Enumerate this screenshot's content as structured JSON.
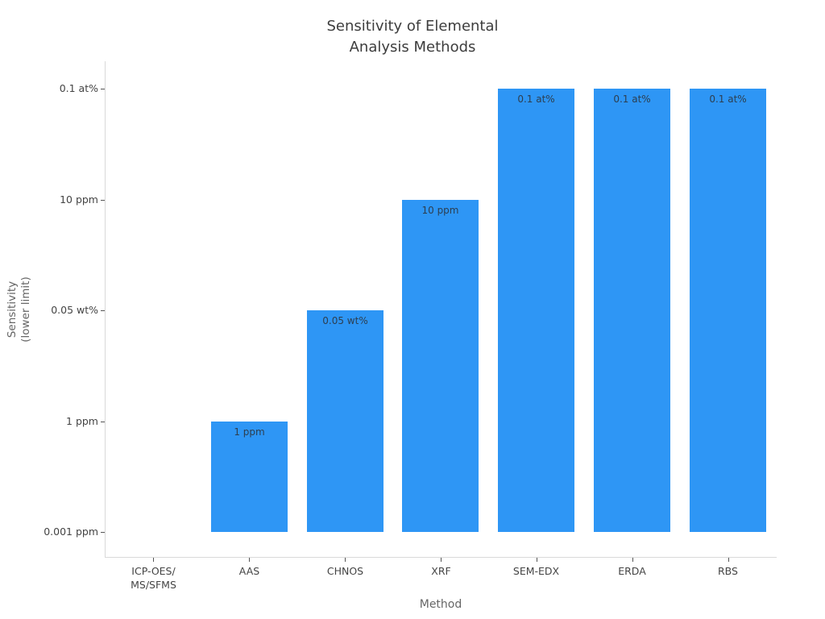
{
  "chart_data": {
    "type": "bar",
    "title_lines": [
      "Sensitivity of Elemental",
      "Analysis Methods"
    ],
    "title": "Sensitivity of Elemental Analysis Methods",
    "xlabel": "Method",
    "ylabel_lines": [
      "Sensitivity",
      "(lower limit)"
    ],
    "ylabel": "Sensitivity (lower limit)",
    "categories": [
      "ICP-OES/\nMS/SFMS",
      "AAS",
      "CHNOS",
      "XRF",
      "SEM-EDX",
      "ERDA",
      "RBS"
    ],
    "sensitivities": [
      "0.001 ppm",
      "1 ppm",
      "0.05 wt%",
      "10 ppm",
      "0.1 at%",
      "0.1 at%",
      "0.1 at%"
    ],
    "values": [
      0,
      1,
      2,
      3,
      4,
      4,
      4
    ],
    "bar_labels": [
      "",
      "1 ppm",
      "0.05 wt%",
      "10 ppm",
      "0.1 at%",
      "0.1 at%",
      "0.1 at%"
    ],
    "ytick_labels": [
      "0.001 ppm",
      "1 ppm",
      "0.05 wt%",
      "10 ppm",
      "0.1 at%"
    ],
    "ytick_values": [
      0,
      1,
      2,
      3,
      4
    ],
    "ylim": [
      -0.225,
      4.25
    ],
    "grid": false,
    "legend": "none",
    "colors": {
      "bar": "#2E96F5",
      "axis_line": "#D9D9D9",
      "tick": "#555555",
      "tick_label": "#444444",
      "title": "#3d3d3d",
      "axis_title": "#666666",
      "bar_label": "#2d3e50"
    }
  }
}
